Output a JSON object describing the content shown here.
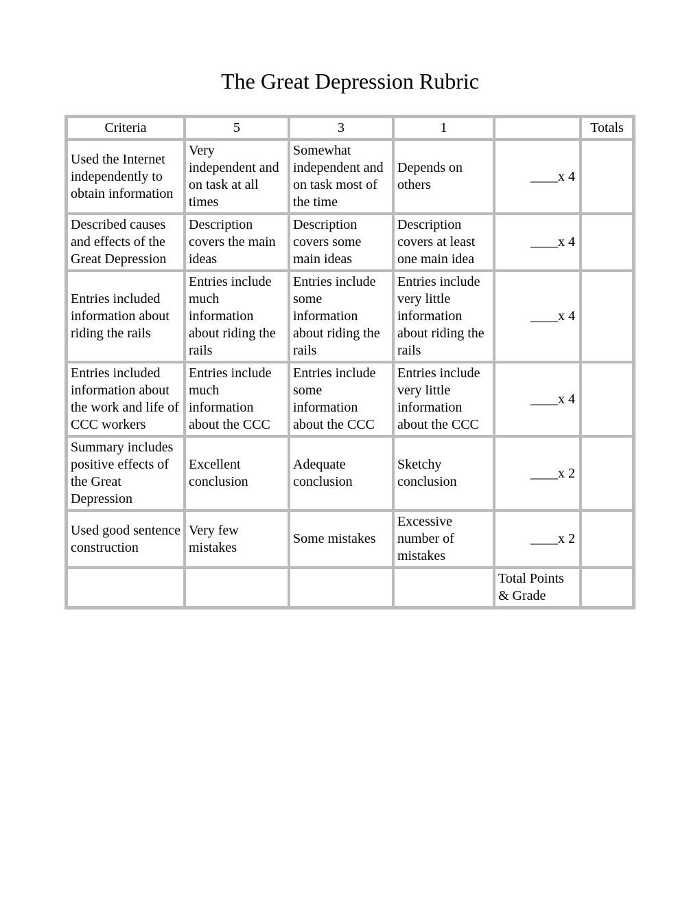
{
  "title": "The Great Depression Rubric",
  "headers": {
    "criteria": "Criteria",
    "c5": "5",
    "c3": "3",
    "c1": "1",
    "mult": "",
    "totals": "Totals"
  },
  "rows": [
    {
      "criteria": "Used the Internet independently to obtain information",
      "c5": "Very independent and on task at all times",
      "c3": "Somewhat independent and on task most of the time",
      "c1": "Depends on others",
      "mult": "____x 4",
      "totals": ""
    },
    {
      "criteria": "Described causes and effects of the Great Depression",
      "c5": "Description covers the main ideas",
      "c3": "Description covers some main ideas",
      "c1": "Description covers at least one main idea",
      "mult": "____x 4",
      "totals": ""
    },
    {
      "criteria": "Entries included information about riding the rails",
      "c5": "Entries include much information about riding the rails",
      "c3": "Entries include some information about riding the rails",
      "c1": "Entries include very little information about riding the rails",
      "mult": "____x 4",
      "totals": ""
    },
    {
      "criteria": "Entries included information about the work and life of  CCC workers",
      "c5": "Entries include much information about the CCC",
      "c3": "Entries include some information about the CCC",
      "c1": "Entries include very little information about the CCC",
      "mult": "____x 4",
      "totals": ""
    },
    {
      "criteria": "Summary includes positive effects of the Great Depression",
      "c5": "Excellent conclusion",
      "c3": "Adequate conclusion",
      "c1": "Sketchy conclusion",
      "mult": "____x 2",
      "totals": ""
    },
    {
      "criteria": "Used good sentence construction",
      "c5": "Very few mistakes",
      "c3": "Some mistakes",
      "c1": "Excessive number of mistakes",
      "mult": "____x 2",
      "totals": ""
    }
  ],
  "footer": {
    "label": "Total Points & Grade"
  }
}
